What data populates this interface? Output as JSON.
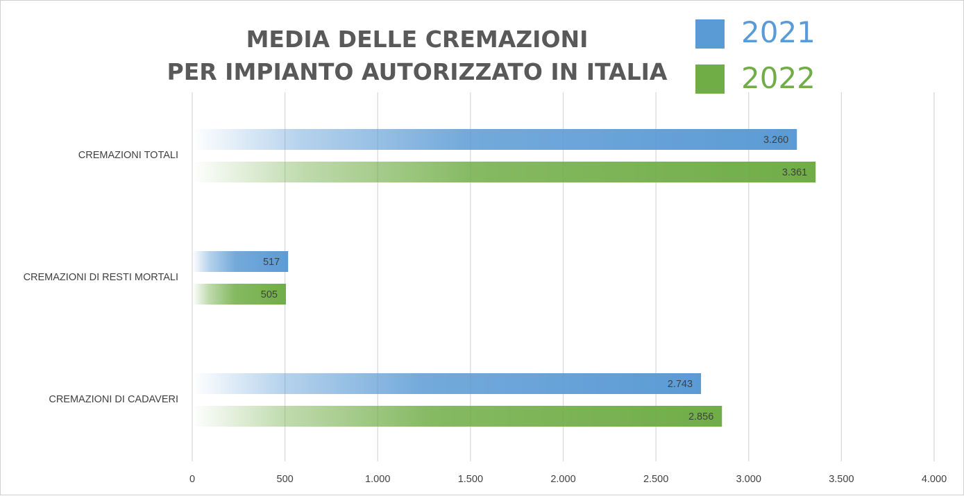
{
  "chart_data": {
    "type": "bar",
    "orientation": "horizontal",
    "title": [
      "MEDIA DELLE CREMAZIONI",
      "PER IMPIANTO AUTORIZZATO IN ITALIA"
    ],
    "categories": [
      "CREMAZIONI TOTALI",
      "CREMAZIONI DI RESTI MORTALI",
      "CREMAZIONI DI CADAVERI"
    ],
    "series": [
      {
        "name": "2021",
        "color": "#5b9bd5",
        "values": [
          3260,
          517,
          2743
        ],
        "labels": [
          "3.260",
          "517",
          "2.743"
        ]
      },
      {
        "name": "2022",
        "color": "#70ad47",
        "values": [
          3361,
          505,
          2856
        ],
        "labels": [
          "3.361",
          "505",
          "2.856"
        ]
      }
    ],
    "xlim": [
      0,
      4000
    ],
    "xticks": [
      0,
      500,
      1000,
      1500,
      2000,
      2500,
      3000,
      3500,
      4000
    ],
    "xtick_labels": [
      "0",
      "500",
      "1.000",
      "1.500",
      "2.000",
      "2.500",
      "3.000",
      "3.500",
      "4.000"
    ],
    "xlabel": "",
    "ylabel": "",
    "grid": true,
    "legend_position": "top-right",
    "bar_style": "gradient fading to the left"
  }
}
